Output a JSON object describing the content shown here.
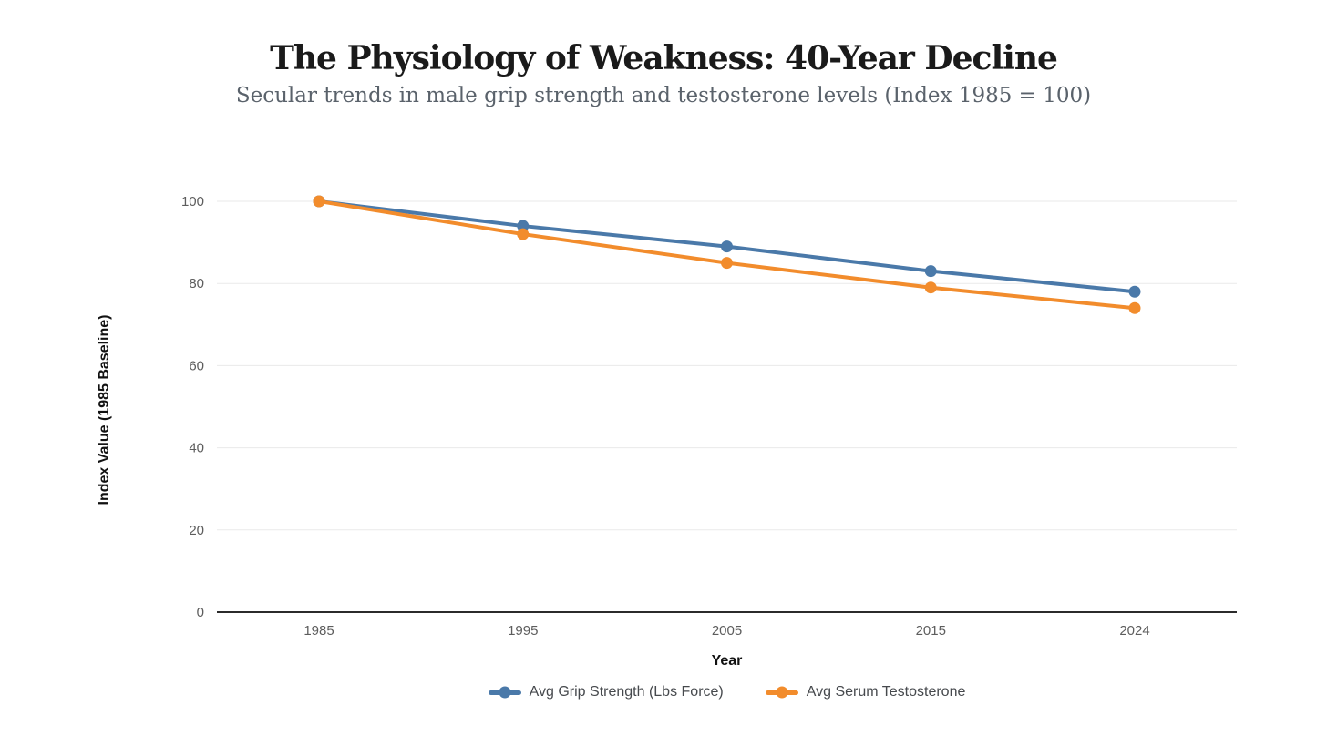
{
  "header": {
    "title": "The Physiology of Weakness: 40-Year Decline",
    "subtitle": "Secular trends in male grip strength and testosterone levels (Index 1985 = 100)"
  },
  "chart_data": {
    "type": "line",
    "categories": [
      "1985",
      "1995",
      "2005",
      "2015",
      "2024"
    ],
    "series": [
      {
        "name": "Avg Grip Strength (Lbs Force)",
        "color": "#4A79A9",
        "values": [
          100,
          94,
          89,
          83,
          78
        ]
      },
      {
        "name": "Avg Serum Testosterone",
        "color": "#F28C2C",
        "values": [
          100,
          92,
          85,
          79,
          74
        ]
      }
    ],
    "title": "The Physiology of Weakness: 40-Year Decline",
    "subtitle": "Secular trends in male grip strength and testosterone levels (Index 1985 = 100)",
    "xlabel": "Year",
    "ylabel": "Index Value (1985 Baseline)",
    "ylim": [
      0,
      100
    ],
    "yticks": [
      0,
      20,
      40,
      60,
      80,
      100
    ],
    "grid": true,
    "legend_position": "bottom"
  },
  "colors": {
    "grid": "#eaeaea",
    "axis": "#2b2b2b",
    "tick_label": "#5d5d5d"
  }
}
